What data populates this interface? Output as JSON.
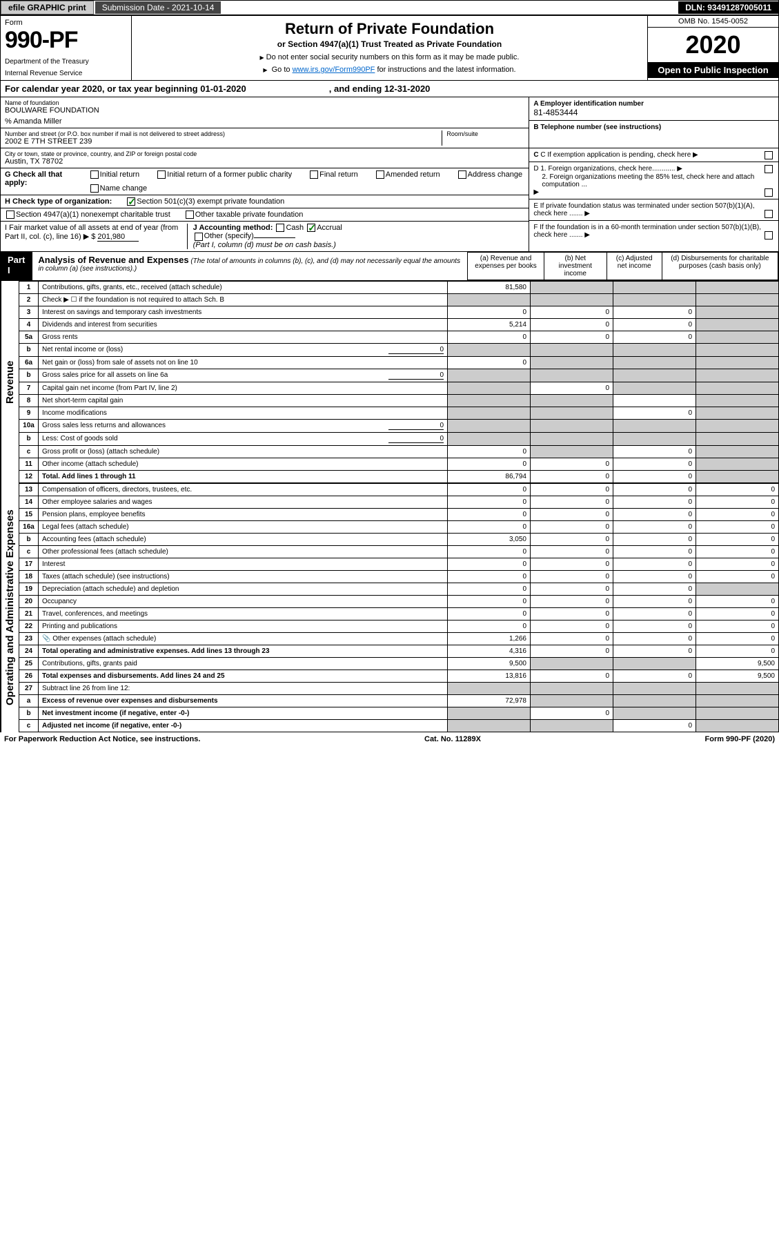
{
  "topbar": {
    "efile": "efile GRAPHIC print",
    "submission": "Submission Date - 2021-10-14",
    "dln": "DLN: 93491287005011"
  },
  "header": {
    "form_label": "Form",
    "form_no": "990-PF",
    "dept": "Department of the Treasury",
    "irs": "Internal Revenue Service",
    "title": "Return of Private Foundation",
    "subtitle": "or Section 4947(a)(1) Trust Treated as Private Foundation",
    "note1": "Do not enter social security numbers on this form as it may be made public.",
    "note2_pre": "Go to ",
    "note2_link": "www.irs.gov/Form990PF",
    "note2_post": " for instructions and the latest information.",
    "omb": "OMB No. 1545-0052",
    "year": "2020",
    "inspect": "Open to Public Inspection"
  },
  "calyear": {
    "pre": "For calendar year 2020, or tax year beginning ",
    "begin": "01-01-2020",
    "mid": ", and ending ",
    "end": "12-31-2020"
  },
  "org": {
    "name_lbl": "Name of foundation",
    "name": "BOULWARE FOUNDATION",
    "care": "% Amanda Miller",
    "addr_lbl": "Number and street (or P.O. box number if mail is not delivered to street address)",
    "addr": "2002 E 7TH STREET 239",
    "room_lbl": "Room/suite",
    "city_lbl": "City or town, state or province, country, and ZIP or foreign postal code",
    "city": "Austin, TX  78702",
    "ein_lbl": "A Employer identification number",
    "ein": "81-4853444",
    "tel_lbl": "B Telephone number (see instructions)",
    "c": "C If exemption application is pending, check here",
    "d1": "D 1. Foreign organizations, check here............",
    "d2": "2. Foreign organizations meeting the 85% test, check here and attach computation ...",
    "e": "E If private foundation status was terminated under section 507(b)(1)(A), check here .......",
    "f": "F If the foundation is in a 60-month termination under section 507(b)(1)(B), check here ......."
  },
  "g": {
    "label": "G Check all that apply:",
    "opts": [
      "Initial return",
      "Initial return of a former public charity",
      "Final return",
      "Amended return",
      "Address change",
      "Name change"
    ]
  },
  "h": {
    "label": "H Check type of organization:",
    "opt1": "Section 501(c)(3) exempt private foundation",
    "opt2": "Section 4947(a)(1) nonexempt charitable trust",
    "opt3": "Other taxable private foundation"
  },
  "i": {
    "label": "I Fair market value of all assets at end of year (from Part II, col. (c), line 16)",
    "amt": "201,980"
  },
  "j": {
    "label": "J Accounting method:",
    "cash": "Cash",
    "accrual": "Accrual",
    "other": "Other (specify)",
    "note": "(Part I, column (d) must be on cash basis.)"
  },
  "part1": {
    "hdr": "Part I",
    "title": "Analysis of Revenue and Expenses",
    "note": "(The total of amounts in columns (b), (c), and (d) may not necessarily equal the amounts in column (a) (see instructions).)",
    "cols": {
      "a": "(a) Revenue and expenses per books",
      "b": "(b) Net investment income",
      "c": "(c) Adjusted net income",
      "d": "(d) Disbursements for charitable purposes (cash basis only)"
    }
  },
  "sections": {
    "rev": "Revenue",
    "exp": "Operating and Administrative Expenses"
  },
  "rows": [
    {
      "n": "1",
      "d": "Contributions, gifts, grants, etc., received (attach schedule)",
      "a": "81,580",
      "grey_b": true,
      "grey_c": true,
      "grey_d": true
    },
    {
      "n": "2",
      "d": "Check ▶ ☐ if the foundation is not required to attach Sch. B",
      "grey_a": true,
      "grey_b": true,
      "grey_c": true,
      "grey_d": true
    },
    {
      "n": "3",
      "d": "Interest on savings and temporary cash investments",
      "a": "0",
      "b": "0",
      "c": "0",
      "grey_d": true
    },
    {
      "n": "4",
      "d": "Dividends and interest from securities",
      "a": "5,214",
      "b": "0",
      "c": "0",
      "grey_d": true
    },
    {
      "n": "5a",
      "d": "Gross rents",
      "a": "0",
      "b": "0",
      "c": "0",
      "grey_d": true
    },
    {
      "n": "b",
      "d": "Net rental income or (loss)",
      "inline": "0",
      "grey_a": true,
      "grey_b": true,
      "grey_c": true,
      "grey_d": true
    },
    {
      "n": "6a",
      "d": "Net gain or (loss) from sale of assets not on line 10",
      "a": "0",
      "grey_b": true,
      "grey_c": true,
      "grey_d": true
    },
    {
      "n": "b",
      "d": "Gross sales price for all assets on line 6a",
      "inline": "0",
      "grey_a": true,
      "grey_b": true,
      "grey_c": true,
      "grey_d": true
    },
    {
      "n": "7",
      "d": "Capital gain net income (from Part IV, line 2)",
      "grey_a": true,
      "b": "0",
      "grey_c": true,
      "grey_d": true
    },
    {
      "n": "8",
      "d": "Net short-term capital gain",
      "grey_a": true,
      "grey_b": true,
      "grey_d": true
    },
    {
      "n": "9",
      "d": "Income modifications",
      "grey_a": true,
      "grey_b": true,
      "c": "0",
      "grey_d": true
    },
    {
      "n": "10a",
      "d": "Gross sales less returns and allowances",
      "inline": "0",
      "grey_a": true,
      "grey_b": true,
      "grey_c": true,
      "grey_d": true
    },
    {
      "n": "b",
      "d": "Less: Cost of goods sold",
      "inline": "0",
      "grey_a": true,
      "grey_b": true,
      "grey_c": true,
      "grey_d": true
    },
    {
      "n": "c",
      "d": "Gross profit or (loss) (attach schedule)",
      "a": "0",
      "grey_b": true,
      "c": "0",
      "grey_d": true
    },
    {
      "n": "11",
      "d": "Other income (attach schedule)",
      "a": "0",
      "b": "0",
      "c": "0",
      "grey_d": true
    },
    {
      "n": "12",
      "d": "Total. Add lines 1 through 11",
      "bold": true,
      "a": "86,794",
      "b": "0",
      "c": "0",
      "grey_d": true
    },
    {
      "n": "13",
      "d": "Compensation of officers, directors, trustees, etc.",
      "a": "0",
      "b": "0",
      "c": "0",
      "dd": "0"
    },
    {
      "n": "14",
      "d": "Other employee salaries and wages",
      "a": "0",
      "b": "0",
      "c": "0",
      "dd": "0"
    },
    {
      "n": "15",
      "d": "Pension plans, employee benefits",
      "a": "0",
      "b": "0",
      "c": "0",
      "dd": "0"
    },
    {
      "n": "16a",
      "d": "Legal fees (attach schedule)",
      "a": "0",
      "b": "0",
      "c": "0",
      "dd": "0"
    },
    {
      "n": "b",
      "d": "Accounting fees (attach schedule)",
      "a": "3,050",
      "b": "0",
      "c": "0",
      "dd": "0"
    },
    {
      "n": "c",
      "d": "Other professional fees (attach schedule)",
      "a": "0",
      "b": "0",
      "c": "0",
      "dd": "0"
    },
    {
      "n": "17",
      "d": "Interest",
      "a": "0",
      "b": "0",
      "c": "0",
      "dd": "0"
    },
    {
      "n": "18",
      "d": "Taxes (attach schedule) (see instructions)",
      "a": "0",
      "b": "0",
      "c": "0",
      "dd": "0"
    },
    {
      "n": "19",
      "d": "Depreciation (attach schedule) and depletion",
      "a": "0",
      "b": "0",
      "c": "0",
      "grey_d": true
    },
    {
      "n": "20",
      "d": "Occupancy",
      "a": "0",
      "b": "0",
      "c": "0",
      "dd": "0"
    },
    {
      "n": "21",
      "d": "Travel, conferences, and meetings",
      "a": "0",
      "b": "0",
      "c": "0",
      "dd": "0"
    },
    {
      "n": "22",
      "d": "Printing and publications",
      "a": "0",
      "b": "0",
      "c": "0",
      "dd": "0"
    },
    {
      "n": "23",
      "d": "Other expenses (attach schedule)",
      "a": "1,266",
      "b": "0",
      "c": "0",
      "dd": "0",
      "icon": true
    },
    {
      "n": "24",
      "d": "Total operating and administrative expenses. Add lines 13 through 23",
      "bold": true,
      "a": "4,316",
      "b": "0",
      "c": "0",
      "dd": "0"
    },
    {
      "n": "25",
      "d": "Contributions, gifts, grants paid",
      "a": "9,500",
      "grey_b": true,
      "grey_c": true,
      "dd": "9,500"
    },
    {
      "n": "26",
      "d": "Total expenses and disbursements. Add lines 24 and 25",
      "bold": true,
      "a": "13,816",
      "b": "0",
      "c": "0",
      "dd": "9,500"
    },
    {
      "n": "27",
      "d": "Subtract line 26 from line 12:",
      "grey_a": true,
      "grey_b": true,
      "grey_c": true,
      "grey_d": true
    },
    {
      "n": "a",
      "d": "Excess of revenue over expenses and disbursements",
      "bold": true,
      "a": "72,978",
      "grey_b": true,
      "grey_c": true,
      "grey_d": true
    },
    {
      "n": "b",
      "d": "Net investment income (if negative, enter -0-)",
      "bold": true,
      "grey_a": true,
      "b": "0",
      "grey_c": true,
      "grey_d": true
    },
    {
      "n": "c",
      "d": "Adjusted net income (if negative, enter -0-)",
      "bold": true,
      "grey_a": true,
      "grey_b": true,
      "c": "0",
      "grey_d": true
    }
  ],
  "footer": {
    "pra": "For Paperwork Reduction Act Notice, see instructions.",
    "cat": "Cat. No. 11289X",
    "form": "Form 990-PF (2020)"
  }
}
